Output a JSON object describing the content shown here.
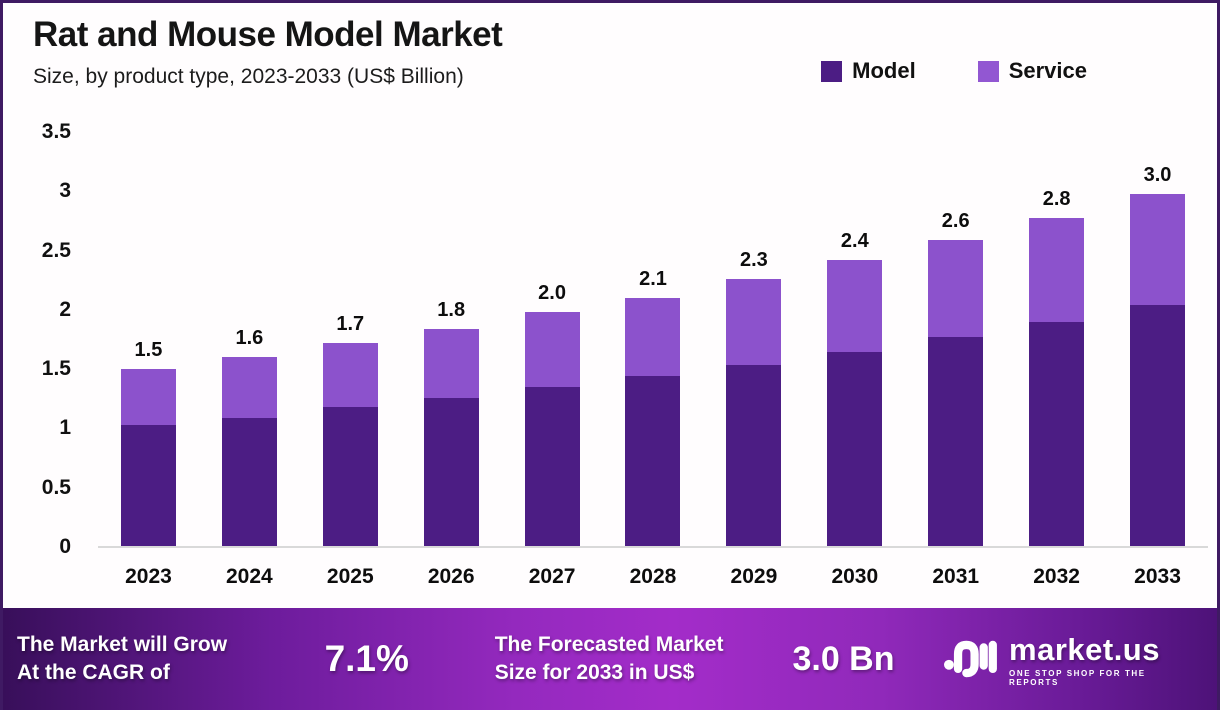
{
  "header": {
    "title": "Rat and Mouse Model Market",
    "subtitle": "Size, by product type, 2023-2033 (US$ Billion)"
  },
  "legend": {
    "items": [
      {
        "label": "Model",
        "color": "#4c1d84"
      },
      {
        "label": "Service",
        "color": "#9257d2"
      }
    ]
  },
  "colors": {
    "model": "#4c1d84",
    "service": "#8c52cc",
    "border": "#3f1a63",
    "banner_gradient_left": "#380f5a",
    "banner_gradient_mid": "#a32cc9",
    "banner_gradient_right": "#4c1277"
  },
  "chart_data": {
    "type": "bar",
    "stacked": true,
    "title": "Rat and Mouse Model Market",
    "subtitle": "Size, by product type, 2023-2033 (US$ Billion)",
    "xlabel": "",
    "ylabel": "US$ Billion",
    "ylim": [
      0,
      3.5
    ],
    "yticks": [
      "3.5",
      "3",
      "2.5",
      "2",
      "1.5",
      "1",
      "0.5",
      "0"
    ],
    "grid": false,
    "legend_position": "top-right",
    "categories": [
      "2023",
      "2024",
      "2025",
      "2026",
      "2027",
      "2028",
      "2029",
      "2030",
      "2031",
      "2032",
      "2033"
    ],
    "series": [
      {
        "name": "Model",
        "color": "#4c1d84",
        "values": [
          1.02,
          1.08,
          1.17,
          1.25,
          1.34,
          1.43,
          1.53,
          1.64,
          1.76,
          1.89,
          2.03
        ]
      },
      {
        "name": "Service",
        "color": "#8c52cc",
        "values": [
          0.47,
          0.51,
          0.54,
          0.58,
          0.63,
          0.66,
          0.72,
          0.77,
          0.82,
          0.88,
          0.94
        ]
      }
    ],
    "total_labels": [
      "1.5",
      "1.6",
      "1.7",
      "1.8",
      "2.0",
      "2.1",
      "2.3",
      "2.4",
      "2.6",
      "2.8",
      "3.0"
    ]
  },
  "banner": {
    "cagr_label_line1": "The Market will Grow",
    "cagr_label_line2": "At the CAGR of",
    "cagr_value": "7.1%",
    "forecast_label_line1": "The Forecasted Market",
    "forecast_label_line2": "Size for 2033 in US$",
    "forecast_value": "3.0 Bn",
    "logo_text": "market.us",
    "logo_tagline": "ONE STOP SHOP FOR THE REPORTS"
  }
}
